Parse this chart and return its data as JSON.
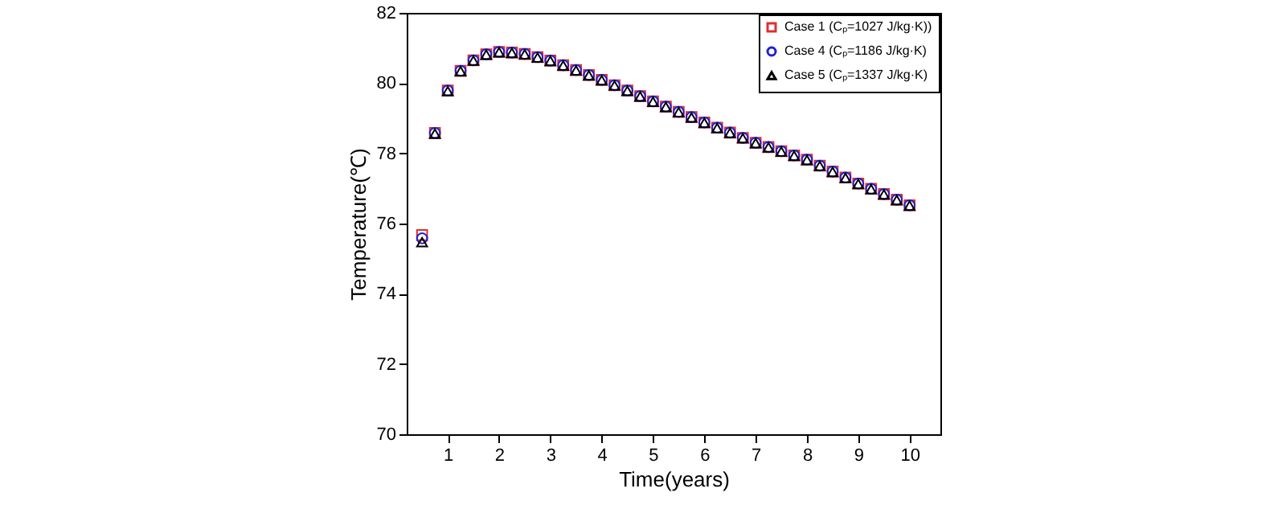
{
  "chart_data": {
    "type": "scatter",
    "xlabel": "Time(years)",
    "ylabel": "Temperature(℃)",
    "x": [
      0.5,
      0.75,
      1.0,
      1.25,
      1.5,
      1.75,
      2.0,
      2.25,
      2.5,
      2.75,
      3.0,
      3.25,
      3.5,
      3.75,
      4.0,
      4.25,
      4.5,
      4.75,
      5.0,
      5.25,
      5.5,
      5.75,
      6.0,
      6.25,
      6.5,
      6.75,
      7.0,
      7.25,
      7.5,
      7.75,
      8.0,
      8.25,
      8.5,
      8.75,
      9.0,
      9.25,
      9.5,
      9.75,
      10.0
    ],
    "series": [
      {
        "name": "Case 1 (Cₚ=1027 J/kg·K))",
        "color": "#e03030",
        "marker": "square",
        "values": [
          75.67,
          78.58,
          79.79,
          80.35,
          80.65,
          80.82,
          80.89,
          80.87,
          80.83,
          80.74,
          80.64,
          80.51,
          80.37,
          80.23,
          80.09,
          79.94,
          79.79,
          79.63,
          79.48,
          79.33,
          79.18,
          79.03,
          78.88,
          78.73,
          78.59,
          78.44,
          78.3,
          78.18,
          78.06,
          77.94,
          77.82,
          77.65,
          77.48,
          77.31,
          77.14,
          76.99,
          76.84,
          76.68,
          76.52
        ]
      },
      {
        "name": "Case 4 (Cₚ=1186 J/kg·K)",
        "color": "#2020d0",
        "marker": "circle",
        "values": [
          75.58,
          78.58,
          79.79,
          80.35,
          80.65,
          80.82,
          80.89,
          80.87,
          80.83,
          80.74,
          80.64,
          80.51,
          80.37,
          80.23,
          80.09,
          79.94,
          79.79,
          79.63,
          79.48,
          79.33,
          79.18,
          79.03,
          78.88,
          78.73,
          78.59,
          78.44,
          78.3,
          78.18,
          78.06,
          77.94,
          77.82,
          77.65,
          77.48,
          77.31,
          77.14,
          76.99,
          76.84,
          76.68,
          76.52
        ]
      },
      {
        "name": "Case 5 (Cₚ=1337 J/kg·K)",
        "color": "#000000",
        "marker": "triangle",
        "values": [
          75.47,
          78.56,
          79.77,
          80.34,
          80.64,
          80.81,
          80.88,
          80.86,
          80.82,
          80.73,
          80.63,
          80.5,
          80.36,
          80.22,
          80.08,
          79.93,
          79.78,
          79.62,
          79.47,
          79.32,
          79.17,
          79.02,
          78.87,
          78.72,
          78.58,
          78.43,
          78.29,
          78.17,
          78.05,
          77.93,
          77.81,
          77.64,
          77.47,
          77.3,
          77.13,
          76.98,
          76.83,
          76.67,
          76.51
        ]
      }
    ],
    "xlim": [
      0.2,
      10.6
    ],
    "xticks": [
      1,
      2,
      3,
      4,
      5,
      6,
      7,
      8,
      9,
      10
    ],
    "ylim": [
      70,
      82
    ],
    "yticks": [
      70,
      72,
      74,
      76,
      78,
      80,
      82
    ],
    "grid": false,
    "legend": "top right"
  }
}
